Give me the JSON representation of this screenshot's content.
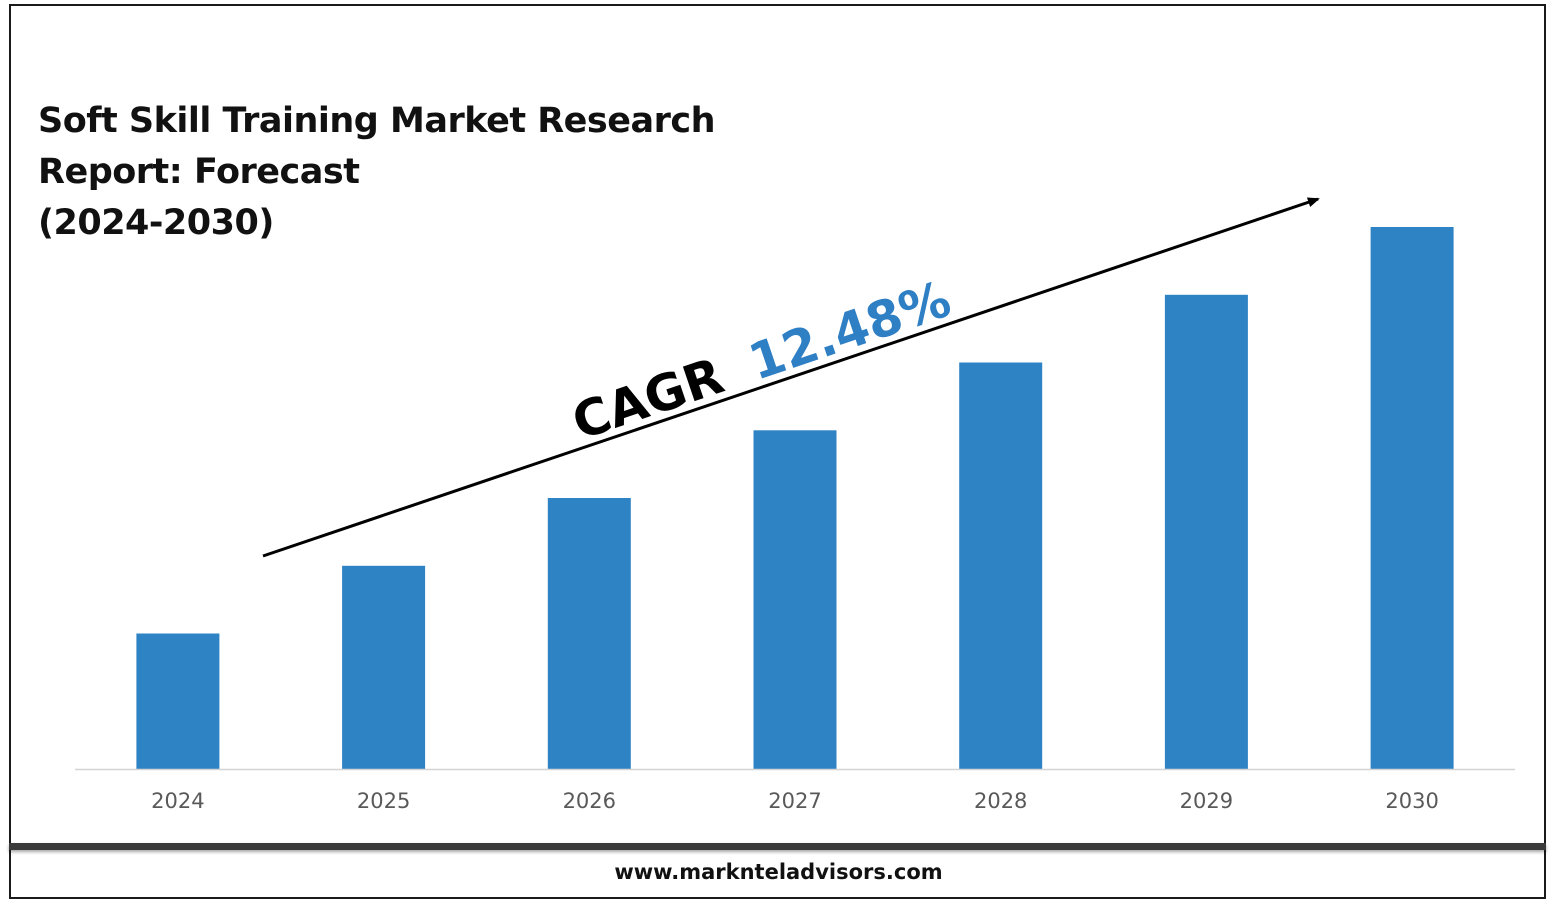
{
  "chart_data": {
    "type": "bar",
    "title": "Soft Skill Training Market Research Report: Forecast (2024-2030)",
    "title_lines": [
      "Soft Skill Training Market Research",
      "Report: Forecast",
      "(2024-2030)"
    ],
    "categories": [
      "2024",
      "2025",
      "2026",
      "2027",
      "2028",
      "2029",
      "2030"
    ],
    "values": [
      1.0,
      1.5,
      2.0,
      2.5,
      3.0,
      3.5,
      4.0
    ],
    "xlabel": "",
    "ylabel": "",
    "ylim": [
      0,
      4.0
    ],
    "grid": false,
    "bar_color": "#2e83c4",
    "annotation": {
      "cagr_label": "CAGR",
      "cagr_value": "12.48%",
      "cagr_value_color": "#2e7fc4",
      "arrow": "trend-arrow"
    }
  },
  "footer": {
    "website": "www.marknteladvisors.com"
  }
}
